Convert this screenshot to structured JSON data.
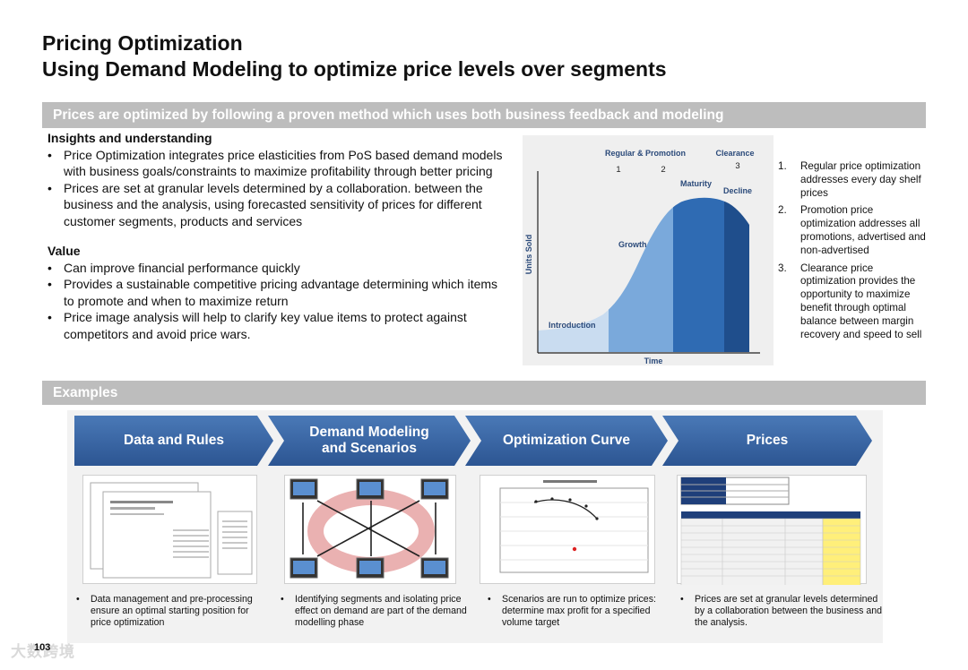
{
  "title": {
    "line1": "Pricing Optimization",
    "line2": "Using Demand Modeling to optimize price levels over segments"
  },
  "band_method": "Prices are optimized by following a proven method which uses both business feedback and modeling",
  "insights": {
    "heading": "Insights and understanding",
    "bullets": [
      "Price Optimization integrates price elasticities from PoS based demand models with business goals/constraints to maximize profitability through better pricing",
      "Prices are set at granular levels determined by a collaboration. between the business and the analysis, using forecasted sensitivity of prices for different customer segments, products and services"
    ]
  },
  "value": {
    "heading": "Value",
    "bullets": [
      "Can improve financial performance quickly",
      "Provides a sustainable competitive pricing advantage determining which items to promote and when to maximize return",
      "Price image analysis will help to clarify key value items to protect against competitors and avoid price wars."
    ]
  },
  "lifecycle": {
    "ylabel": "Units Sold",
    "xlabel": "Time",
    "stages": [
      "Introduction",
      "Growth",
      "Maturity",
      "Decline"
    ],
    "top_regular": "Regular & Promotion",
    "top_clearance": "Clearance",
    "markers": [
      "1",
      "2",
      "3"
    ],
    "colors": {
      "light": "#c9dcf0",
      "mid": "#7aa9db",
      "dark": "#2f6bb3",
      "darkest": "#1f4e8c",
      "label": "#2b4a7a"
    }
  },
  "notes": [
    {
      "num": "1.",
      "text": "Regular price optimization addresses every day shelf prices"
    },
    {
      "num": "2.",
      "text": "Promotion price optimization addresses all promotions, advertised and non-advertised"
    },
    {
      "num": "3.",
      "text": "Clearance price optimization provides the opportunity to maximize benefit through optimal balance between margin recovery and speed to sell"
    }
  ],
  "band_examples": "Examples",
  "steps": [
    {
      "label": "Data and Rules",
      "caption": "Data management and pre-processing ensure an optimal starting position for price optimization"
    },
    {
      "label1": "Demand Modeling",
      "label2": "and Scenarios",
      "caption": "Identifying segments and isolating price effect on demand are part of the demand modelling phase"
    },
    {
      "label": "Optimization Curve",
      "caption": "Scenarios are run to optimize prices: determine max profit for a specified volume target"
    },
    {
      "label": "Prices",
      "caption": "Prices are set at granular levels determined by a collaboration between the business and the analysis."
    }
  ],
  "page_number": "103",
  "watermark": "大数跨境"
}
